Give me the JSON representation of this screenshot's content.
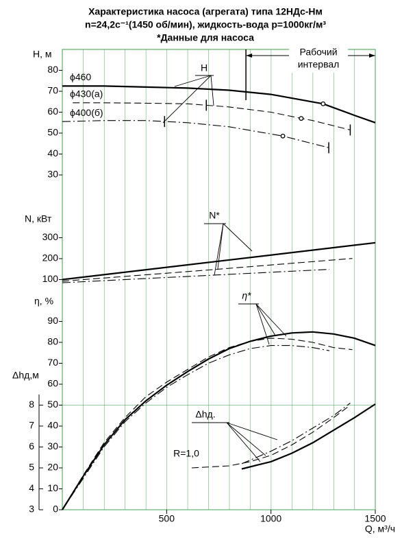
{
  "chart_data": {
    "type": "line",
    "title": "Характеристика насоса (агрегата) типа 12НДс-Нм",
    "subtitle": "n=24,2с⁻¹(1450 об/мин), жидкость-вода p=1000кг/м³",
    "note": "*Данные для насоса",
    "xlim": [
      0,
      1500
    ],
    "xticks": [
      500,
      1000,
      1500
    ],
    "xlabel": "Q, м³/ч",
    "working_interval": {
      "label": [
        "Рабочий",
        "интервал"
      ],
      "range": [
        880,
        1500
      ]
    },
    "panels": [
      {
        "label": "H, м",
        "ylim": [
          30,
          80
        ],
        "yticks": [
          30,
          40,
          50,
          60,
          70,
          80
        ],
        "annotation": "H",
        "series": [
          {
            "name": "ϕ460",
            "color": "#000",
            "style": "solid",
            "x": [
              0,
              200,
              400,
              600,
              800,
              1000,
              1250,
              1400,
              1500
            ],
            "values": [
              72.5,
              72.5,
              72,
              71.5,
              70.5,
              68.5,
              64,
              58.5,
              55
            ],
            "markers": [
              6
            ]
          },
          {
            "name": "ϕ430(а)",
            "color": "#000",
            "style": "dashed",
            "x": [
              50,
              200,
              400,
              600,
              800,
              1000,
              1145,
              1200,
              1380
            ],
            "values": [
              64.5,
              64.5,
              64.3,
              64,
              62.5,
              60,
              57,
              56,
              51.5
            ],
            "markers": [
              6
            ],
            "limits": [
              690,
              1380
            ]
          },
          {
            "name": "ϕ400(б)",
            "color": "#000",
            "style": "dashdot",
            "x": [
              0,
              200,
              400,
              600,
              800,
              1057,
              1277
            ],
            "values": [
              55.5,
              56,
              56,
              55,
              53,
              48.6,
              43
            ],
            "markers": [
              5
            ],
            "limits": [
              490,
              1277
            ]
          }
        ]
      },
      {
        "label": "N, кВт",
        "ylim": [
          100,
          300
        ],
        "yticks": [
          100,
          200,
          300
        ],
        "annotation": "N*",
        "series": [
          {
            "color": "#000",
            "style": "solid",
            "x": [
              0,
              750,
              1500
            ],
            "values": [
              100,
              188,
              276
            ]
          },
          {
            "color": "#000",
            "style": "dashed",
            "x": [
              0,
              700,
              1390
            ],
            "values": [
              92,
              146,
              201
            ]
          },
          {
            "color": "#000",
            "style": "dashdot",
            "x": [
              0,
              640,
              1280
            ],
            "values": [
              85,
              117,
              149
            ]
          }
        ]
      },
      {
        "label": "η, %",
        "ylim": [
          0,
          90
        ],
        "yticks": [
          0,
          10,
          20,
          30,
          40,
          50,
          60,
          70,
          80,
          90
        ],
        "annotation": "η*",
        "series": [
          {
            "color": "#000",
            "style": "solid",
            "x": [
              0,
              100,
              200,
              300,
              400,
              500,
              600,
              700,
              800,
              900,
              1000,
              1100,
              1200,
              1300,
              1400,
              1500
            ],
            "values": [
              0,
              16,
              31,
              43,
              52,
              59.5,
              66,
              72,
              77,
              80.5,
              83,
              84.5,
              85,
              84,
              82,
              78.5
            ]
          },
          {
            "color": "#000",
            "style": "dashed",
            "x": [
              0,
              100,
              200,
              300,
              400,
              500,
              600,
              700,
              800,
              900,
              1000,
              1100,
              1200,
              1300,
              1390
            ],
            "values": [
              0,
              16.5,
              32,
              44,
              54,
              61,
              67,
              73,
              77.5,
              80.5,
              82,
              81.5,
              80,
              77.5,
              76.5
            ]
          },
          {
            "color": "#000",
            "style": "dashdot",
            "x": [
              0,
              100,
              200,
              300,
              400,
              500,
              600,
              700,
              800,
              900,
              1000,
              1100,
              1200,
              1280
            ],
            "values": [
              0,
              15,
              30,
              42,
              51,
              58.5,
              64.5,
              70,
              74,
              77,
              78.5,
              78.5,
              77.5,
              76
            ]
          }
        ]
      },
      {
        "label": "Δhд,м",
        "ylim": [
          3,
          8
        ],
        "yticks": [
          3,
          4,
          5,
          6,
          7,
          8
        ],
        "annotation": "Δhд.",
        "note": "R=1,0",
        "series": [
          {
            "color": "#000",
            "style": "solid",
            "x": [
              860,
              1000,
              1100,
              1200,
              1300,
              1400,
              1500
            ],
            "values": [
              4.95,
              5.3,
              5.7,
              6.2,
              6.8,
              7.4,
              8.05
            ]
          },
          {
            "color": "#000",
            "style": "dashed",
            "x": [
              620,
              800,
              900,
              1000,
              1100,
              1200,
              1300,
              1380
            ],
            "values": [
              5,
              5.1,
              5.3,
              5.6,
              6.1,
              6.7,
              7.4,
              8
            ]
          },
          {
            "color": "#000",
            "style": "dashdot",
            "x": [
              860,
              1000,
              1100,
              1200,
              1300,
              1380
            ],
            "values": [
              5.2,
              5.8,
              6.3,
              6.9,
              7.5,
              8.1
            ]
          }
        ]
      }
    ]
  }
}
